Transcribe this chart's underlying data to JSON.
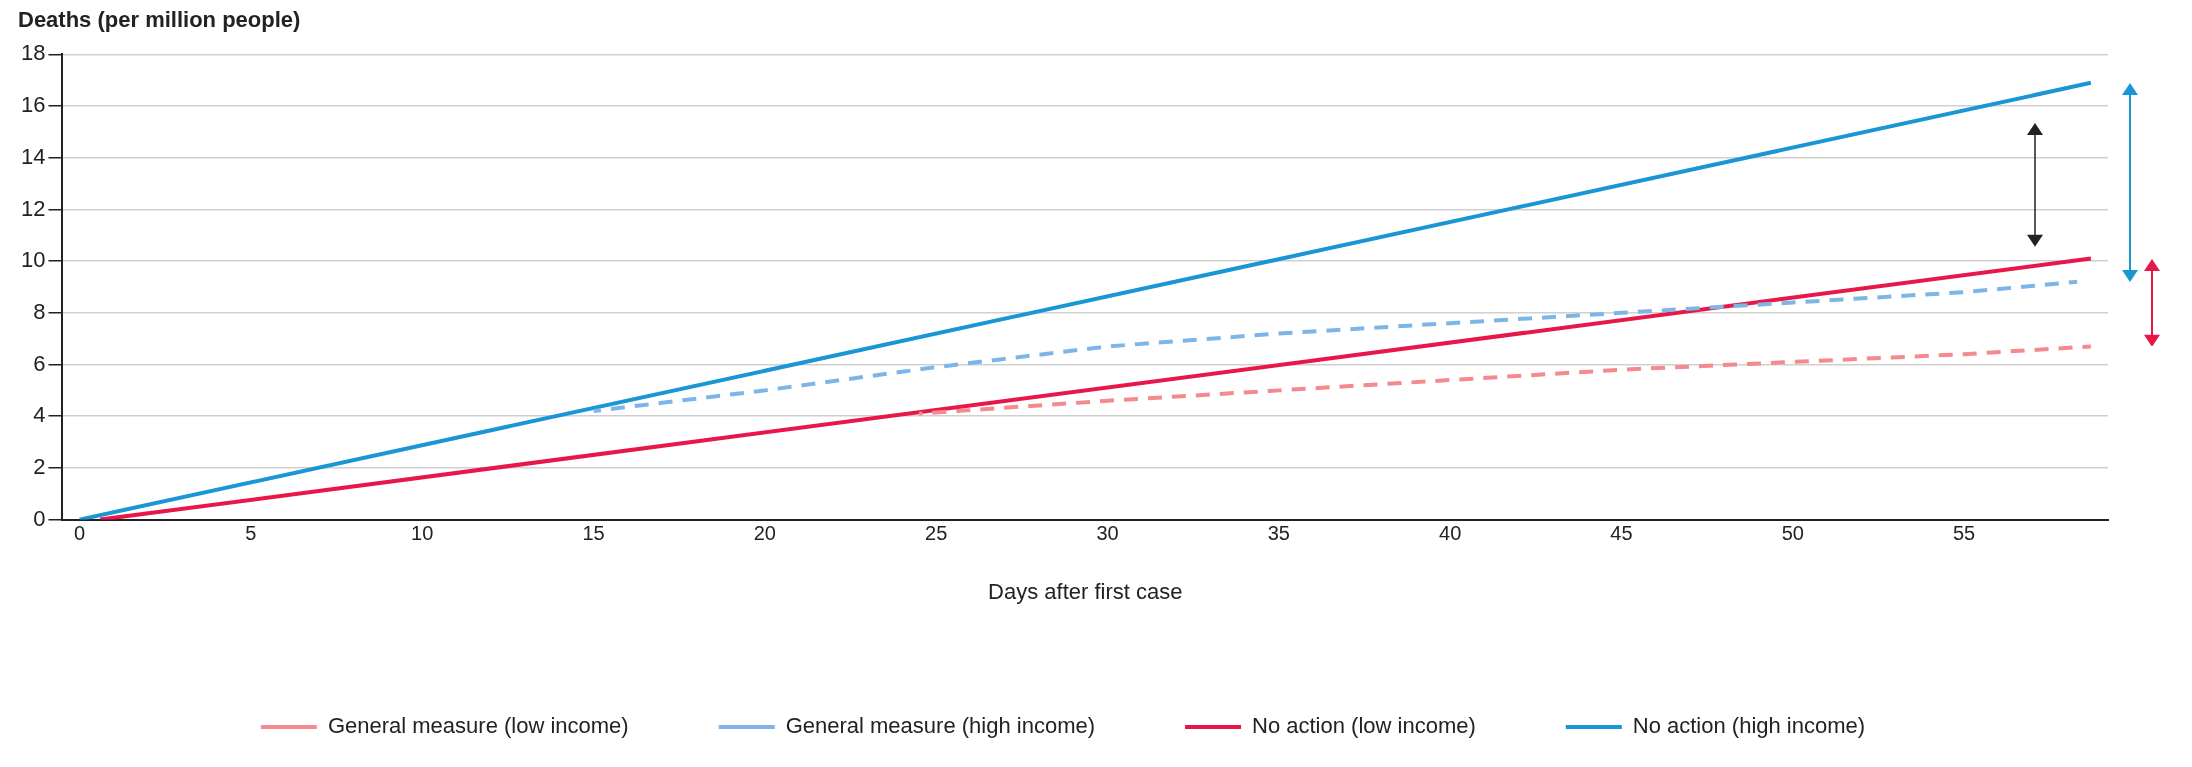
{
  "chart_data": {
    "type": "line",
    "ylabel": "Deaths (per million people)",
    "xlabel": "Days after first case",
    "xlim": [
      -0.5,
      59.2
    ],
    "xticks": [
      0,
      5,
      10,
      15,
      20,
      25,
      30,
      35,
      40,
      45,
      50,
      55
    ],
    "ylim": [
      0,
      18
    ],
    "yticks": [
      0,
      2,
      4,
      6,
      8,
      10,
      12,
      14,
      16,
      18
    ],
    "grid": "y",
    "legend": "bottom",
    "marker": "none",
    "series": [
      {
        "name": "General measure (low income)",
        "color": "#f4898f",
        "line_style": "dashed",
        "x": [
          24.5,
          30,
          35,
          40,
          45,
          50,
          55,
          58.7
        ],
        "values": [
          4.1,
          4.6,
          5.0,
          5.4,
          5.8,
          6.1,
          6.4,
          6.7
        ]
      },
      {
        "name": "General measure (high income)",
        "color": "#7db6e6",
        "line_style": "dashed",
        "x": [
          15,
          20,
          25,
          30,
          35,
          40,
          45,
          50,
          55,
          58.3
        ],
        "values": [
          4.2,
          5.0,
          5.9,
          6.7,
          7.2,
          7.6,
          8.0,
          8.4,
          8.8,
          9.2
        ]
      },
      {
        "name": "No action (low income)",
        "color": "#e8174a",
        "line_style": "solid",
        "x": [
          0.6,
          58.7
        ],
        "values": [
          0,
          10.1
        ]
      },
      {
        "name": "No action (high income)",
        "color": "#1a96d4",
        "line_style": "solid",
        "x": [
          0,
          58.7
        ],
        "values": [
          0,
          16.9
        ]
      }
    ]
  }
}
